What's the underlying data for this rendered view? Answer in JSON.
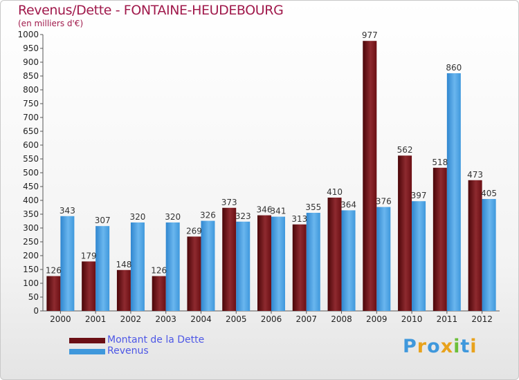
{
  "header": {
    "title": "Revenus/Dette - FONTAINE-HEUDEBOURG",
    "subtitle": "(en milliers d'€)"
  },
  "legend": {
    "items": [
      {
        "label": "Montant de la Dette",
        "color": "#6b0f14"
      },
      {
        "label": "Revenus",
        "color": "#3f98dc"
      }
    ]
  },
  "logo": {
    "text": "Proxiti"
  },
  "colors": {
    "debt": "#6b0f14",
    "debt_highlight": "#8e2a2f",
    "revenue": "#3f98dc",
    "revenue_highlight": "#6ab6ee",
    "title": "#a0194b",
    "legend_text": "#4d57e6"
  },
  "chart_data": {
    "type": "bar",
    "title": "Revenus/Dette - FONTAINE-HEUDEBOURG",
    "subtitle": "(en milliers d'€)",
    "categories": [
      "2000",
      "2001",
      "2002",
      "2003",
      "2004",
      "2005",
      "2006",
      "2007",
      "2008",
      "2009",
      "2010",
      "2011",
      "2012"
    ],
    "series": [
      {
        "name": "Montant de la Dette",
        "values": [
          126,
          179,
          148,
          126,
          269,
          373,
          346,
          313,
          410,
          977,
          562,
          518,
          473
        ]
      },
      {
        "name": "Revenus",
        "values": [
          343,
          307,
          320,
          320,
          326,
          323,
          341,
          355,
          364,
          376,
          397,
          860,
          405
        ]
      }
    ],
    "ylim": [
      0,
      1000
    ],
    "yticks": [
      0,
      50,
      100,
      150,
      200,
      250,
      300,
      350,
      400,
      450,
      500,
      550,
      600,
      650,
      700,
      750,
      800,
      850,
      900,
      950,
      1000
    ],
    "grid": false,
    "legend_position": "bottom-left",
    "data_labels": true
  }
}
